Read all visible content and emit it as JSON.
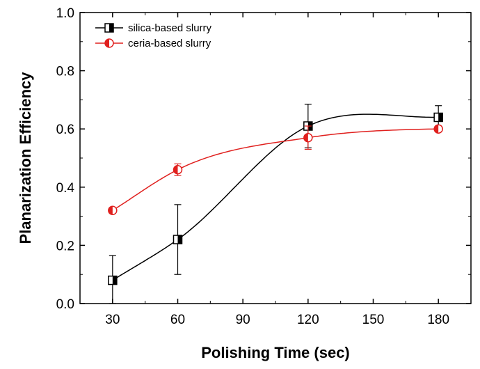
{
  "chart_data": {
    "type": "scatter",
    "xlabel": "Polishing Time (sec)",
    "ylabel": "Planarization Efficiency",
    "xlim": [
      15,
      195
    ],
    "ylim": [
      0.0,
      1.0
    ],
    "x_ticks": [
      "30",
      "60",
      "90",
      "120",
      "150",
      "180"
    ],
    "y_ticks": [
      "0.0",
      "0.2",
      "0.4",
      "0.6",
      "0.8",
      "1.0"
    ],
    "grid": false,
    "legend_position": "top-left",
    "series": [
      {
        "name": "silica-based slurry",
        "color": "#000000",
        "marker": "half-filled-square",
        "x": [
          30,
          60,
          120,
          180
        ],
        "y": [
          0.08,
          0.22,
          0.61,
          0.64
        ],
        "error": [
          0.085,
          0.12,
          0.075,
          0.04
        ],
        "fit_line": true
      },
      {
        "name": "ceria-based slurry",
        "color": "#e0201e",
        "marker": "half-filled-circle",
        "x": [
          30,
          60,
          120,
          180
        ],
        "y": [
          0.32,
          0.46,
          0.57,
          0.6
        ],
        "error": [
          0.01,
          0.02,
          0.04,
          0.01
        ],
        "fit_line": true
      }
    ]
  }
}
